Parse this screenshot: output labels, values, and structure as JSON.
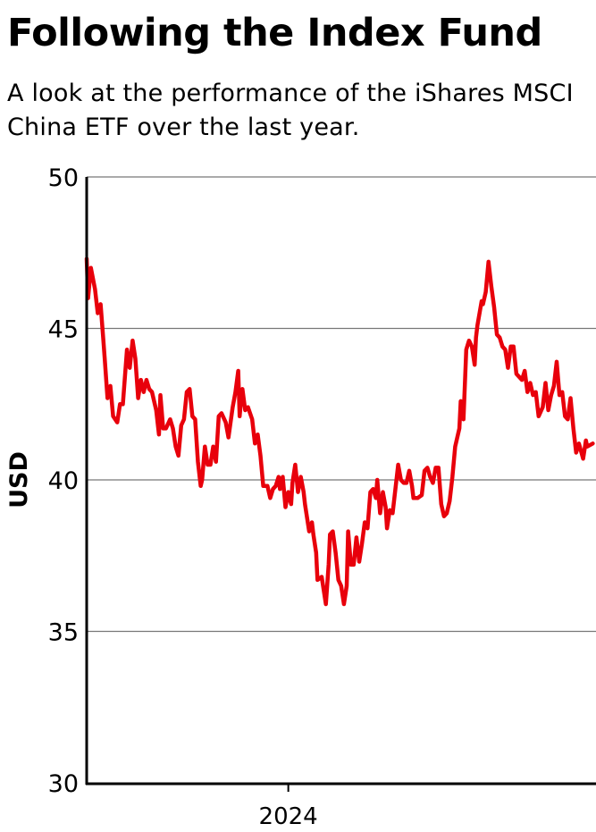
{
  "chart_data": {
    "type": "line",
    "title": "Following the Index Fund",
    "subtitle": "A look at the performance of the iShares MSCI China ETF over the last year.",
    "xlabel": "",
    "ylabel": "USD",
    "ylim": [
      30,
      50
    ],
    "xlim": [
      "2023-08-09",
      "2024-08-08"
    ],
    "yticks": [
      "30",
      "35",
      "40",
      "45",
      "50"
    ],
    "xticks": [
      {
        "date": "2024-01-01",
        "label": "2024"
      }
    ],
    "grid": "horizontal",
    "line_color": "#e8000b",
    "series": [
      {
        "x": [
          "2023-08-09",
          "2023-08-10",
          "2023-08-12",
          "2023-08-15",
          "2023-08-17",
          "2023-08-19",
          "2023-08-21",
          "2023-08-22",
          "2023-08-24",
          "2023-08-26",
          "2023-08-28",
          "2023-08-31",
          "2023-09-02",
          "2023-09-04",
          "2023-09-07",
          "2023-09-09",
          "2023-09-11",
          "2023-09-13",
          "2023-09-15",
          "2023-09-17",
          "2023-09-19",
          "2023-09-21",
          "2023-09-23",
          "2023-09-25",
          "2023-09-28",
          "2023-09-30",
          "2023-10-01",
          "2023-10-03",
          "2023-10-05",
          "2023-10-08",
          "2023-10-10",
          "2023-10-12",
          "2023-10-14",
          "2023-10-16",
          "2023-10-18",
          "2023-10-20",
          "2023-10-22",
          "2023-10-24",
          "2023-10-26",
          "2023-10-28",
          "2023-10-30",
          "2023-10-31",
          "2023-11-02",
          "2023-11-04",
          "2023-11-06",
          "2023-11-08",
          "2023-11-10",
          "2023-11-12",
          "2023-11-14",
          "2023-11-17",
          "2023-11-19",
          "2023-11-22",
          "2023-11-24",
          "2023-11-26",
          "2023-11-27",
          "2023-11-28",
          "2023-11-29",
          "2023-12-01",
          "2023-12-03",
          "2023-12-06",
          "2023-12-08",
          "2023-12-10",
          "2023-12-12",
          "2023-12-14",
          "2023-12-17",
          "2023-12-19",
          "2023-12-21",
          "2023-12-23",
          "2023-12-25",
          "2023-12-26",
          "2023-12-28",
          "2023-12-30",
          "2024-01-01",
          "2024-01-03",
          "2024-01-04",
          "2024-01-06",
          "2024-01-08",
          "2024-01-10",
          "2024-01-12",
          "2024-01-13",
          "2024-01-16",
          "2024-01-18",
          "2024-01-19",
          "2024-01-21",
          "2024-01-22",
          "2024-01-25",
          "2024-01-28",
          "2024-01-30",
          "2024-01-31",
          "2024-02-02",
          "2024-02-04",
          "2024-02-06",
          "2024-02-08",
          "2024-02-10",
          "2024-02-12",
          "2024-02-13",
          "2024-02-15",
          "2024-02-17",
          "2024-02-19",
          "2024-02-21",
          "2024-02-23",
          "2024-02-25",
          "2024-02-27",
          "2024-02-29",
          "2024-03-02",
          "2024-03-04",
          "2024-03-05",
          "2024-03-07",
          "2024-03-09",
          "2024-03-11",
          "2024-03-12",
          "2024-03-14",
          "2024-03-16",
          "2024-03-18",
          "2024-03-20",
          "2024-03-22",
          "2024-03-24",
          "2024-03-26",
          "2024-03-28",
          "2024-03-30",
          "2024-03-31",
          "2024-04-03",
          "2024-04-06",
          "2024-04-08",
          "2024-04-10",
          "2024-04-12",
          "2024-04-14",
          "2024-04-16",
          "2024-04-18",
          "2024-04-20",
          "2024-04-22",
          "2024-04-24",
          "2024-04-26",
          "2024-04-28",
          "2024-04-30",
          "2024-05-03",
          "2024-05-04",
          "2024-05-06",
          "2024-05-08",
          "2024-05-10",
          "2024-05-12",
          "2024-05-14",
          "2024-05-15",
          "2024-05-16",
          "2024-05-19",
          "2024-05-20",
          "2024-05-22",
          "2024-05-24",
          "2024-05-26",
          "2024-05-28",
          "2024-05-30",
          "2024-06-01",
          "2024-06-03",
          "2024-06-05",
          "2024-06-07",
          "2024-06-09",
          "2024-06-11",
          "2024-06-13",
          "2024-06-15",
          "2024-06-17",
          "2024-06-19",
          "2024-06-21",
          "2024-06-23",
          "2024-06-25",
          "2024-06-27",
          "2024-06-29",
          "2024-07-02",
          "2024-07-04",
          "2024-07-06",
          "2024-07-08",
          "2024-07-10",
          "2024-07-12",
          "2024-07-14",
          "2024-07-16",
          "2024-07-18",
          "2024-07-20",
          "2024-07-22",
          "2024-07-24",
          "2024-07-26",
          "2024-07-28",
          "2024-07-31",
          "2024-08-02",
          "2024-08-03",
          "2024-08-07"
        ],
        "y": [
          47.3,
          46.0,
          47.0,
          46.3,
          45.5,
          45.8,
          44.6,
          44.0,
          42.7,
          43.1,
          42.1,
          41.9,
          42.5,
          42.5,
          44.3,
          43.7,
          44.6,
          44.0,
          42.7,
          43.3,
          42.9,
          43.3,
          43.0,
          42.9,
          42.3,
          41.5,
          42.8,
          41.7,
          41.7,
          42.0,
          41.7,
          41.1,
          40.8,
          41.8,
          42.0,
          42.9,
          43.0,
          42.1,
          42.0,
          40.6,
          39.8,
          40.0,
          41.1,
          40.5,
          40.5,
          41.1,
          40.6,
          42.1,
          42.2,
          41.9,
          41.4,
          42.4,
          42.9,
          43.6,
          42.1,
          42.6,
          43.0,
          42.3,
          42.4,
          42.0,
          41.2,
          41.5,
          40.8,
          39.8,
          39.8,
          39.4,
          39.7,
          39.8,
          40.1,
          39.7,
          40.1,
          39.1,
          39.6,
          39.2,
          39.9,
          40.5,
          39.6,
          40.1,
          39.6,
          39.2,
          38.3,
          38.6,
          38.2,
          37.6,
          36.7,
          36.8,
          35.9,
          37.2,
          38.2,
          38.3,
          37.6,
          36.7,
          36.5,
          35.9,
          36.5,
          38.3,
          37.2,
          37.2,
          38.1,
          37.3,
          37.9,
          38.6,
          38.4,
          39.6,
          39.7,
          39.4,
          40.0,
          38.9,
          39.6,
          39.1,
          38.4,
          39.0,
          38.9,
          39.7,
          40.5,
          40.0,
          39.9,
          39.9,
          40.3,
          39.8,
          39.4,
          39.4,
          39.5,
          40.3,
          40.4,
          40.1,
          39.9,
          40.4,
          40.4,
          39.2,
          38.8,
          38.9,
          39.3,
          40.1,
          41.1,
          41.7,
          42.6,
          42.0,
          44.3,
          44.6,
          44.4,
          43.8,
          44.7,
          45.1,
          45.9,
          45.8,
          46.2,
          47.2,
          46.4,
          45.7,
          44.8,
          44.7,
          44.4,
          44.3,
          43.7,
          44.4,
          44.4,
          43.5,
          43.4,
          43.3,
          43.6,
          42.9,
          43.2,
          42.8,
          42.9,
          42.1,
          42.4,
          43.2,
          42.3,
          42.8,
          43.1,
          43.9,
          42.8,
          42.9,
          42.1,
          42.0,
          42.7,
          41.7,
          40.9,
          41.2,
          40.7,
          41.3,
          41.1,
          41.2
        ]
      }
    ]
  }
}
